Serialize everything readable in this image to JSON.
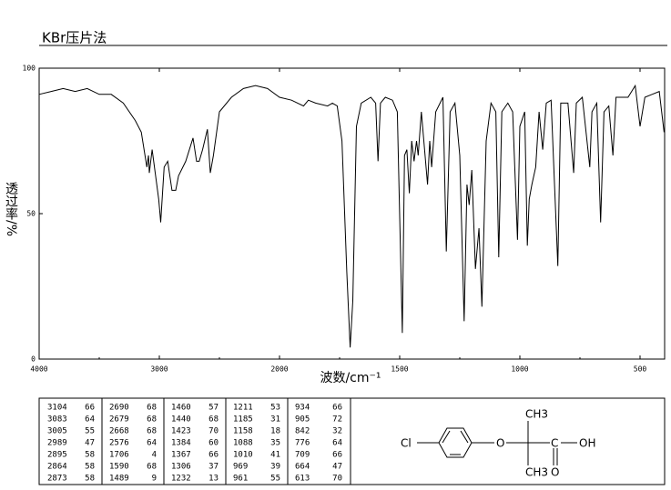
{
  "chart_data": {
    "type": "line",
    "title": "KBr压片法",
    "x_label": "波数/cm⁻¹",
    "y_label": "透过率/%",
    "xlim": [
      4000,
      400
    ],
    "xticks": [
      4000,
      3000,
      2000,
      1500,
      1000,
      500
    ],
    "ylim": [
      0,
      100
    ],
    "yticks": [
      0,
      50,
      100
    ],
    "color": "#000000",
    "x": [
      4000,
      3900,
      3800,
      3700,
      3600,
      3500,
      3400,
      3300,
      3200,
      3150,
      3104,
      3090,
      3083,
      3060,
      3005,
      2995,
      2989,
      2960,
      2930,
      2895,
      2873,
      2864,
      2840,
      2780,
      2720,
      2690,
      2679,
      2668,
      2640,
      2600,
      2576,
      2550,
      2500,
      2400,
      2300,
      2200,
      2100,
      2000,
      1950,
      1900,
      1880,
      1850,
      1800,
      1780,
      1760,
      1740,
      1720,
      1706,
      1695,
      1680,
      1660,
      1620,
      1600,
      1590,
      1580,
      1560,
      1530,
      1510,
      1489,
      1480,
      1470,
      1460,
      1450,
      1440,
      1430,
      1423,
      1410,
      1384,
      1375,
      1367,
      1350,
      1320,
      1306,
      1290,
      1270,
      1250,
      1232,
      1220,
      1211,
      1200,
      1185,
      1170,
      1158,
      1140,
      1120,
      1100,
      1088,
      1075,
      1050,
      1030,
      1010,
      1000,
      980,
      969,
      961,
      950,
      934,
      920,
      905,
      890,
      870,
      842,
      830,
      800,
      776,
      765,
      740,
      709,
      700,
      680,
      664,
      650,
      630,
      613,
      600,
      550,
      520,
      500,
      480,
      450,
      420,
      400
    ],
    "values": [
      91,
      92,
      93,
      92,
      93,
      91,
      91,
      88,
      82,
      78,
      66,
      70,
      64,
      72,
      55,
      50,
      47,
      66,
      68,
      58,
      58,
      58,
      63,
      68,
      76,
      68,
      68,
      68,
      72,
      79,
      64,
      70,
      85,
      90,
      93,
      94,
      93,
      90,
      89,
      87,
      89,
      88,
      87,
      88,
      87,
      75,
      30,
      4,
      20,
      80,
      88,
      90,
      88,
      68,
      88,
      90,
      89,
      85,
      9,
      70,
      72,
      57,
      75,
      68,
      75,
      70,
      85,
      60,
      75,
      66,
      85,
      90,
      37,
      85,
      88,
      70,
      13,
      60,
      53,
      65,
      31,
      45,
      18,
      75,
      88,
      85,
      35,
      85,
      88,
      85,
      41,
      80,
      85,
      39,
      55,
      60,
      66,
      85,
      72,
      88,
      89,
      32,
      88,
      88,
      64,
      88,
      90,
      66,
      85,
      88,
      47,
      85,
      87,
      70,
      90,
      90,
      94,
      80,
      90,
      91,
      92,
      78
    ]
  },
  "peak_table": [
    [
      [
        3104,
        66
      ],
      [
        3083,
        64
      ],
      [
        3005,
        55
      ],
      [
        2989,
        47
      ],
      [
        2895,
        58
      ],
      [
        2864,
        58
      ],
      [
        2873,
        58
      ]
    ],
    [
      [
        2690,
        68
      ],
      [
        2679,
        68
      ],
      [
        2668,
        68
      ],
      [
        2576,
        64
      ],
      [
        1706,
        4
      ],
      [
        1590,
        68
      ],
      [
        1489,
        9
      ]
    ],
    [
      [
        1460,
        57
      ],
      [
        1440,
        68
      ],
      [
        1423,
        70
      ],
      [
        1384,
        60
      ],
      [
        1367,
        66
      ],
      [
        1306,
        37
      ],
      [
        1232,
        13
      ]
    ],
    [
      [
        1211,
        53
      ],
      [
        1185,
        31
      ],
      [
        1158,
        18
      ],
      [
        1088,
        35
      ],
      [
        1010,
        41
      ],
      [
        969,
        39
      ],
      [
        961,
        55
      ]
    ],
    [
      [
        934,
        66
      ],
      [
        905,
        72
      ],
      [
        842,
        32
      ],
      [
        776,
        64
      ],
      [
        709,
        66
      ],
      [
        664,
        47
      ],
      [
        613,
        70
      ]
    ]
  ],
  "structure": {
    "chlorine": "Cl",
    "ether_oxygen": "O",
    "methyl_top": "CH3",
    "carboxyl_carbon": "C",
    "hydroxyl": "OH",
    "methyl_bottom": "CH3",
    "carbonyl_oxygen": "O"
  }
}
